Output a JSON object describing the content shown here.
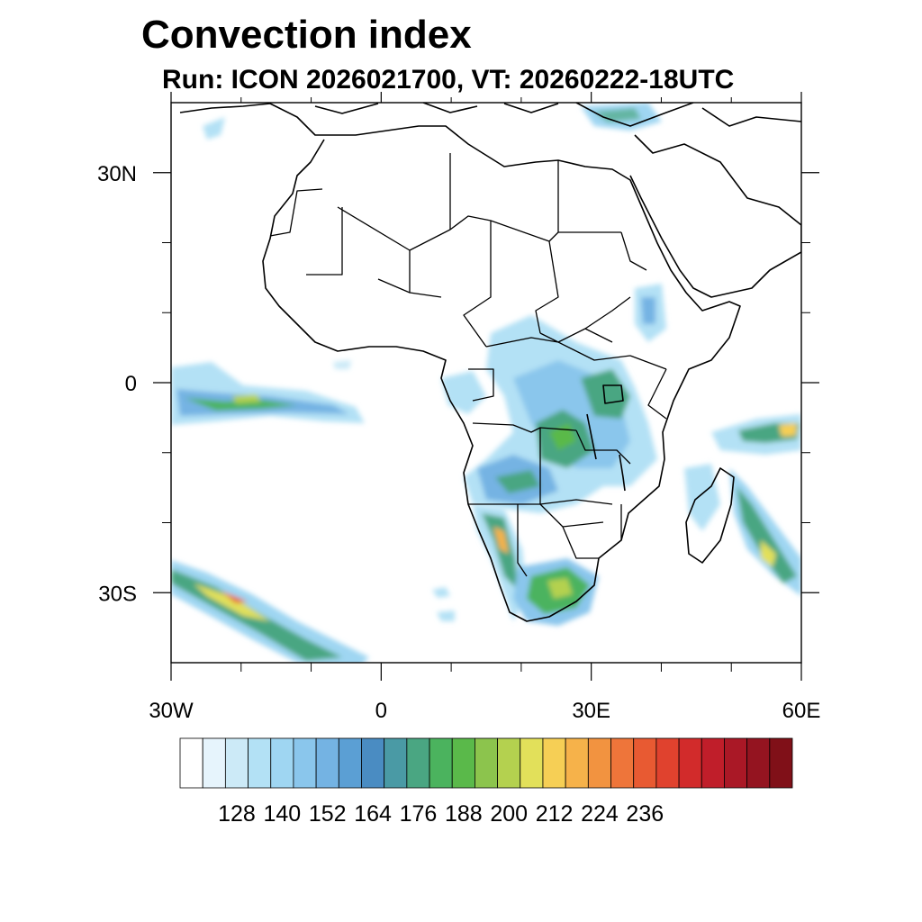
{
  "title": "Convection index",
  "subtitle": "Run: ICON 2026021700,  VT: 20260222-18UTC",
  "map": {
    "region": "Africa",
    "lon_range": [
      -30,
      60
    ],
    "lat_range": [
      -40,
      40
    ],
    "lon_ticks": [
      {
        "lon": -30,
        "label": "30W"
      },
      {
        "lon": 0,
        "label": "0"
      },
      {
        "lon": 30,
        "label": "30E"
      },
      {
        "lon": 60,
        "label": "60E"
      }
    ],
    "lat_ticks": [
      {
        "lat": 30,
        "label": "30N"
      },
      {
        "lat": 0,
        "label": "0"
      },
      {
        "lat": -30,
        "label": "30S"
      }
    ],
    "minor_lon_ticks": [
      -20,
      -10,
      10,
      20,
      40,
      50
    ],
    "minor_lat_ticks": [
      20,
      10,
      -10,
      -20
    ]
  },
  "colorbar": {
    "labels": [
      "128",
      "140",
      "152",
      "164",
      "176",
      "188",
      "200",
      "212",
      "224",
      "236"
    ],
    "colors": [
      "#ffffff",
      "#e6f4fc",
      "#cceaf7",
      "#b3e1f5",
      "#9fd6f2",
      "#8ac6ec",
      "#74b3e3",
      "#5b9fd4",
      "#4a8cc2",
      "#4a9aa5",
      "#4aa682",
      "#4bb35e",
      "#5ab94a",
      "#8cc44d",
      "#b4d14f",
      "#e2e05a",
      "#f6cf55",
      "#f6b24a",
      "#f29340",
      "#ee753a",
      "#e85a32",
      "#e0422e",
      "#d22b2b",
      "#c01e2a",
      "#aa1826",
      "#941420",
      "#801018"
    ]
  }
}
